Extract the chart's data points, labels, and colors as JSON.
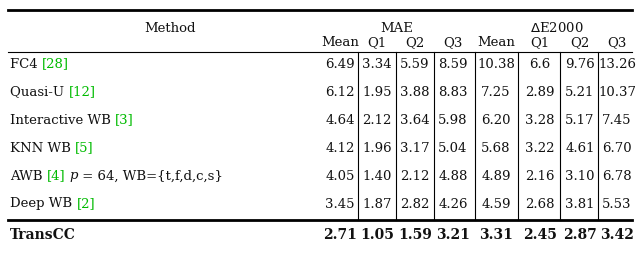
{
  "header1_method": "Method",
  "header1_mae": "MAE",
  "header1_de": "ΔE2000",
  "header2": [
    "Mean",
    "Q1",
    "Q2",
    "Q3",
    "Mean",
    "Q1",
    "Q2",
    "Q3"
  ],
  "rows": [
    [
      "FC4 ",
      "[28]",
      "",
      "6.49",
      "3.34",
      "5.59",
      "8.59",
      "10.38",
      "6.6",
      "9.76",
      "13.26"
    ],
    [
      "Quasi-U ",
      "[12]",
      "",
      "6.12",
      "1.95",
      "3.88",
      "8.83",
      "7.25",
      "2.89",
      "5.21",
      "10.37"
    ],
    [
      "Interactive WB ",
      "[3]",
      "",
      "4.64",
      "2.12",
      "3.64",
      "5.98",
      "6.20",
      "3.28",
      "5.17",
      "7.45"
    ],
    [
      "KNN WB ",
      "[5]",
      "",
      "4.12",
      "1.96",
      "3.17",
      "5.04",
      "5.68",
      "3.22",
      "4.61",
      "6.70"
    ],
    [
      "AWB ",
      "[4]",
      " p = 64, WB={t,f,d,c,s}",
      "4.05",
      "1.40",
      "2.12",
      "4.88",
      "4.89",
      "2.16",
      "3.10",
      "6.78"
    ],
    [
      "Deep WB ",
      "[2]",
      "",
      "3.45",
      "1.87",
      "2.82",
      "4.26",
      "4.59",
      "2.68",
      "3.81",
      "5.53"
    ]
  ],
  "transcc": [
    "TransCC",
    "2.71",
    "1.05",
    "1.59",
    "3.21",
    "3.31",
    "2.45",
    "2.87",
    "3.42"
  ],
  "ref_color": "#00bb00",
  "text_color": "#111111",
  "bg_color": "#ffffff",
  "figsize": [
    6.4,
    2.68
  ],
  "dpi": 100
}
